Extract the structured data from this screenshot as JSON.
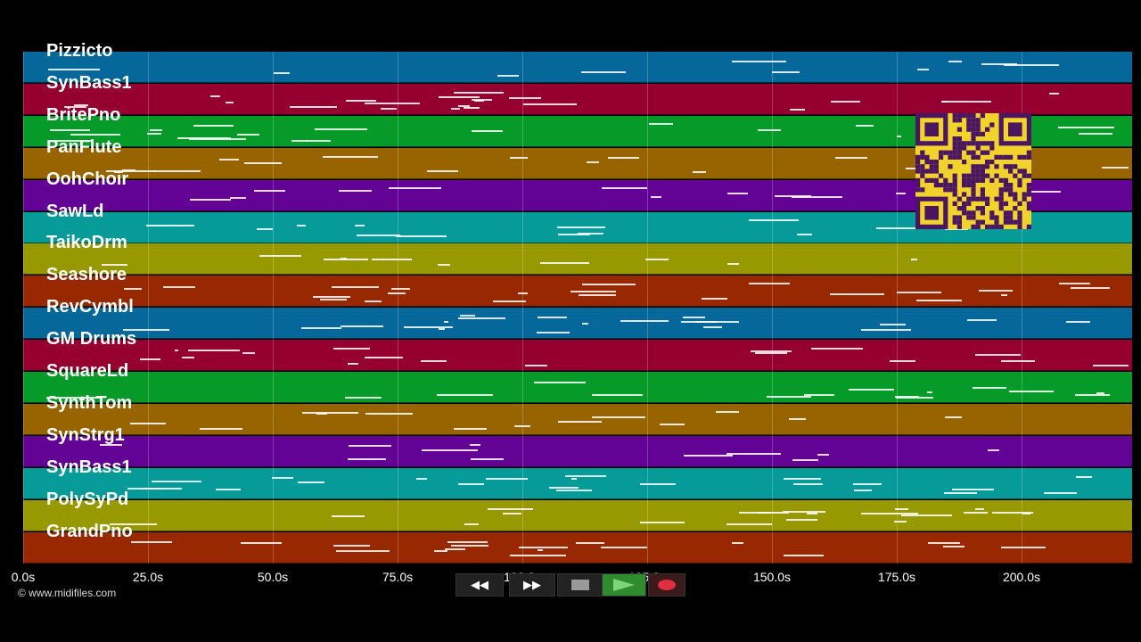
{
  "copyright": "© www.midifiles.com",
  "tracks": [
    {
      "name": "Pizzicto",
      "color": "#05679a"
    },
    {
      "name": "SynBass1",
      "color": "#960030"
    },
    {
      "name": "BritePno",
      "color": "#069a28"
    },
    {
      "name": "PanFlute",
      "color": "#986400"
    },
    {
      "name": "OohChoir",
      "color": "#630396"
    },
    {
      "name": "SawLd",
      "color": "#069a99"
    },
    {
      "name": "TaikoDrm",
      "color": "#989800"
    },
    {
      "name": "Seashore",
      "color": "#982800"
    },
    {
      "name": "RevCymbl",
      "color": "#05679a"
    },
    {
      "name": "GM Drums",
      "color": "#960030"
    },
    {
      "name": "SquareLd",
      "color": "#069a28"
    },
    {
      "name": "SynthTom",
      "color": "#986400"
    },
    {
      "name": "SynStrg1",
      "color": "#630396"
    },
    {
      "name": "SynBass1",
      "color": "#069a99"
    },
    {
      "name": "PolySyPd",
      "color": "#989800"
    },
    {
      "name": "GrandPno",
      "color": "#982800"
    }
  ],
  "time_axis": {
    "ticks": [
      "0.0s",
      "25.0s",
      "50.0s",
      "75.0s",
      "100.0s",
      "125.0s",
      "150.0s",
      "175.0s",
      "200.0s"
    ]
  },
  "transport": {
    "rewind_icon": "rewind-icon",
    "forward_icon": "fast-forward-icon",
    "stop_icon": "stop-icon",
    "play_icon": "play-icon",
    "record_icon": "record-icon",
    "play_color": "#2e8b2e",
    "record_color": "#e03040"
  },
  "qr_color": "#f2d32c"
}
